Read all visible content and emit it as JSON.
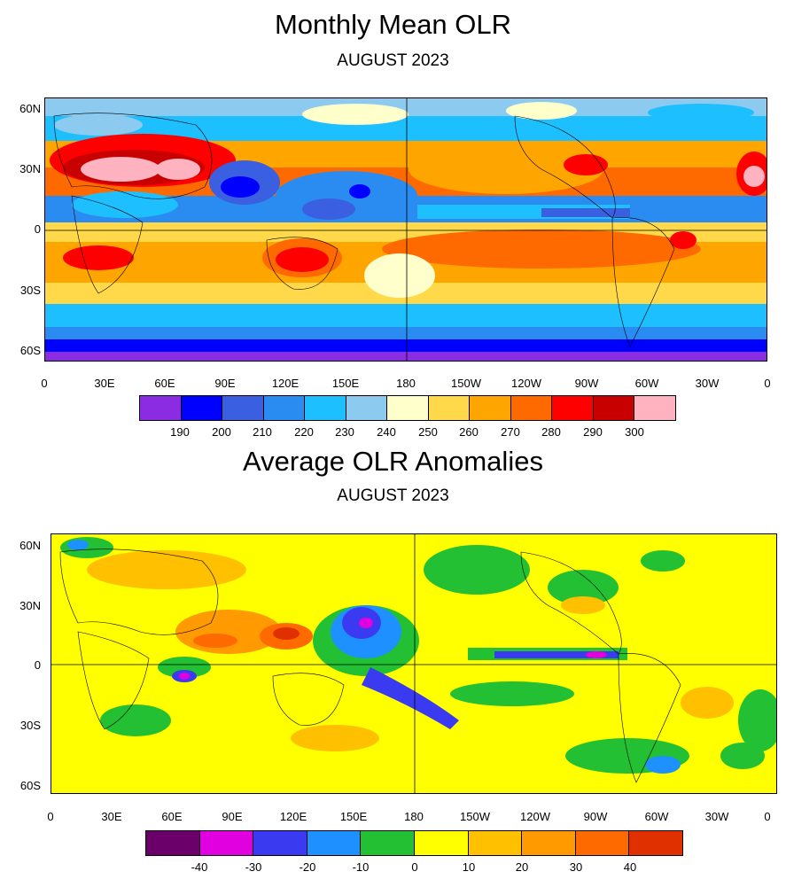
{
  "top_panel": {
    "title": "Monthly Mean OLR",
    "subtitle": "AUGUST  2023",
    "lat_labels": [
      "60N",
      "30N",
      "0",
      "30S",
      "60S"
    ],
    "lon_labels": [
      "0",
      "30E",
      "60E",
      "90E",
      "120E",
      "150E",
      "180",
      "150W",
      "120W",
      "90W",
      "60W",
      "30W",
      "0"
    ],
    "colorbar_labels": [
      "190",
      "200",
      "210",
      "220",
      "230",
      "240",
      "250",
      "260",
      "270",
      "280",
      "290",
      "300"
    ],
    "colorbar_colors": [
      "#8b2be2",
      "#0000ff",
      "#3a5fe0",
      "#2a8cf0",
      "#1ebfff",
      "#8ccaf0",
      "#ffffcc",
      "#ffd94a",
      "#ffa500",
      "#ff6a00",
      "#ff0000",
      "#c80000",
      "#ffb3c1"
    ]
  },
  "bottom_panel": {
    "title": "Average OLR Anomalies",
    "subtitle": "AUGUST 2023",
    "lat_labels": [
      "60N",
      "30N",
      "0",
      "30S",
      "60S"
    ],
    "lon_labels": [
      "0",
      "30E",
      "60E",
      "90E",
      "120E",
      "150E",
      "180",
      "150W",
      "120W",
      "90W",
      "60W",
      "30W",
      "0"
    ],
    "colorbar_labels": [
      "-40",
      "-30",
      "-20",
      "-10",
      "0",
      "10",
      "20",
      "30",
      "40"
    ],
    "colorbar_colors": [
      "#6b006b",
      "#e000e0",
      "#3a3af0",
      "#1e90ff",
      "#22c032",
      "#ffff00",
      "#ffc000",
      "#ff9a00",
      "#ff6a00",
      "#e03000"
    ]
  }
}
